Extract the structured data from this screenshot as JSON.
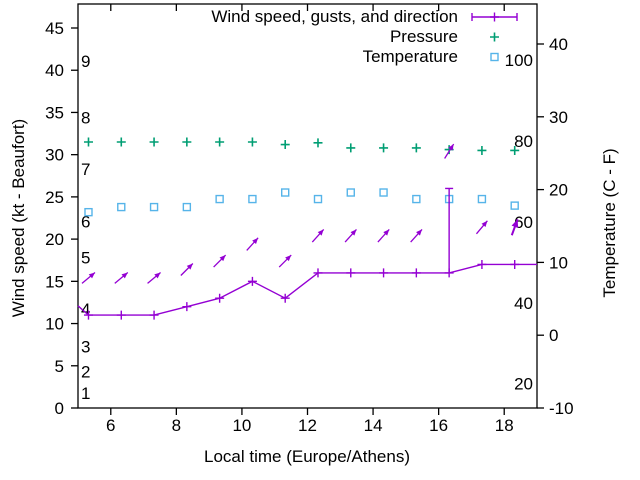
{
  "figure": {
    "xlabel": "Local time (Europe/Athens)",
    "ylabel_left": "Wind speed (kt - Beaufort)",
    "ylabel_right": "Temperature (C - F)"
  },
  "colors": {
    "wind": "#9400d3",
    "pressure": "#009e73",
    "temperature": "#56b4e9",
    "axis": "#000000"
  },
  "legend": {
    "entries": [
      {
        "id": "wind",
        "label": "Wind speed, gusts, and direction",
        "sample": "errorbar-line",
        "color": "#9400d3"
      },
      {
        "id": "pressure",
        "label": "Pressure",
        "sample": "plus",
        "color": "#009e73"
      },
      {
        "id": "temperature",
        "label": "Temperature",
        "sample": "square",
        "color": "#56b4e9"
      }
    ]
  },
  "chart_data": {
    "type": "line",
    "title": "",
    "xlabel": "Local time (Europe/Athens)",
    "ylabel_left": "Wind speed (kt - Beaufort)",
    "ylabel_right": "Temperature (C - F)",
    "x_range": [
      5,
      19
    ],
    "y_left_range_kt": [
      0,
      45
    ],
    "y_right_range_c": [
      -10,
      40
    ],
    "grid": false,
    "legend_position": "top-right-inside",
    "x_ticks": [
      6,
      8,
      10,
      12,
      14,
      16,
      18
    ],
    "y_left_ticks_kt": [
      0,
      5,
      10,
      15,
      20,
      25,
      30,
      35,
      40,
      45
    ],
    "y_right_ticks_c": [
      -10,
      0,
      10,
      20,
      30,
      40
    ],
    "beaufort_inner_labels": [
      {
        "text": "1",
        "kt": 1.8
      },
      {
        "text": "2",
        "kt": 4.3
      },
      {
        "text": "3",
        "kt": 7.3
      },
      {
        "text": "4",
        "kt": 11.7
      },
      {
        "text": "5",
        "kt": 17.8
      },
      {
        "text": "6",
        "kt": 22.1
      },
      {
        "text": "7",
        "kt": 28.3
      },
      {
        "text": "8",
        "kt": 34.4
      },
      {
        "text": "9",
        "kt": 41.1
      }
    ],
    "fahrenheit_inner_labels": [
      {
        "text": "20",
        "f": 20
      },
      {
        "text": "40",
        "f": 40
      },
      {
        "text": "60",
        "f": 60
      },
      {
        "text": "80",
        "f": 80
      },
      {
        "text": "100",
        "f": 100
      }
    ],
    "x": [
      5.32,
      6.32,
      7.32,
      8.32,
      9.32,
      10.32,
      11.32,
      12.32,
      13.32,
      14.32,
      15.32,
      16.32,
      17.32,
      18.32
    ],
    "series": [
      {
        "name": "Wind speed (kt)",
        "style": "line-with-plus-markers",
        "color": "#9400d3",
        "values": [
          11,
          11,
          11,
          12,
          13,
          15,
          13,
          16,
          16,
          16,
          16,
          16,
          17,
          17
        ],
        "edge_start": [
          5.0,
          12.1
        ],
        "edge_end": [
          19.0,
          17
        ]
      },
      {
        "name": "Wind gusts (kt)",
        "style": "errorbar-to-gust",
        "color": "#9400d3",
        "values": [
          11,
          11,
          11,
          12,
          13,
          15,
          13,
          16,
          16,
          16,
          16,
          26,
          17,
          17
        ]
      },
      {
        "name": "Wind direction",
        "style": "arrows-above-points",
        "color": "#9400d3",
        "offset_kt": 4.4,
        "angles_deg": [
          40,
          40,
          40,
          45,
          45,
          48,
          45,
          48,
          48,
          48,
          48,
          58,
          50,
          70
        ],
        "bold": [
          false,
          false,
          false,
          false,
          false,
          false,
          false,
          false,
          false,
          false,
          false,
          false,
          false,
          true
        ]
      },
      {
        "name": "Pressure",
        "style": "plus-points",
        "color": "#009e73",
        "values_on_kt_scale": [
          31.5,
          31.5,
          31.5,
          31.5,
          31.5,
          31.5,
          31.2,
          31.4,
          30.8,
          30.8,
          30.8,
          30.6,
          30.5,
          30.5
        ]
      },
      {
        "name": "Temperature (C)",
        "style": "square-points",
        "color": "#56b4e9",
        "values_c": [
          16.9,
          17.6,
          17.6,
          17.6,
          18.7,
          18.7,
          19.6,
          18.7,
          19.6,
          19.6,
          18.7,
          18.7,
          18.7,
          17.8
        ]
      }
    ]
  }
}
